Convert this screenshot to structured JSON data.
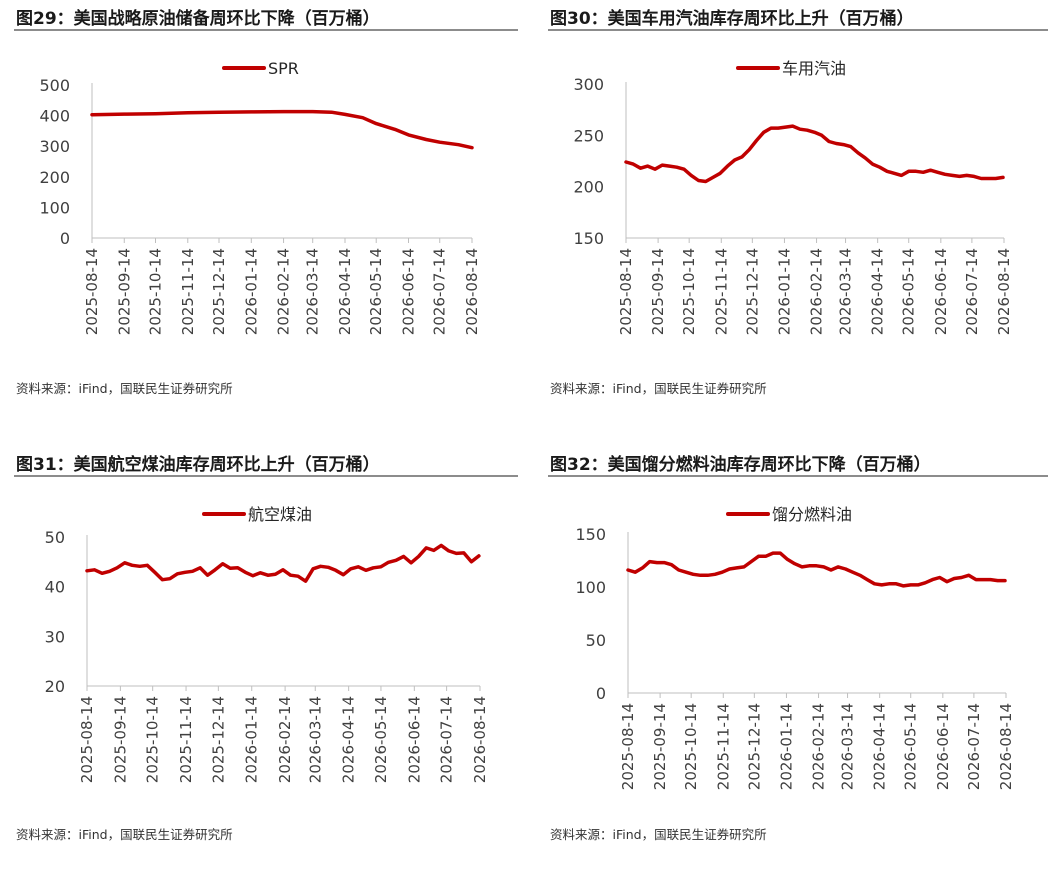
{
  "source_text": "资料来源：iFind，国联民生证券研究所",
  "panels": [
    {
      "title": "图29：美国战略原油储备周环比下降（百万桶）"
    },
    {
      "title": "图30：美国车用汽油库存周环比上升（百万桶）"
    },
    {
      "title": "图31：美国航空煤油库存周环比上升（百万桶）"
    },
    {
      "title": "图32：美国馏分燃料油库存周环比下降（百万桶）"
    }
  ],
  "chart_data": [
    {
      "type": "line",
      "title": "图29：美国战略原油储备周环比下降（百万桶）",
      "legend_position": "top",
      "line_color": "#c00000",
      "ylim": [
        0,
        500
      ],
      "yticks": [
        0,
        100,
        200,
        300,
        400,
        500
      ],
      "xticks": [
        "2025-08-14",
        "2025-09-14",
        "2025-10-14",
        "2025-11-14",
        "2025-12-14",
        "2026-01-14",
        "2026-02-14",
        "2026-03-14",
        "2026-04-14",
        "2026-05-14",
        "2026-06-14",
        "2026-07-14",
        "2026-08-14"
      ],
      "x_range": [
        "2025-08-14",
        "2026-08-14"
      ],
      "series": [
        {
          "name": "SPR",
          "x": [
            "2025-08-14",
            "2025-09-14",
            "2025-10-14",
            "2025-11-14",
            "2025-12-14",
            "2026-01-14",
            "2026-02-14",
            "2026-03-14",
            "2026-04-01",
            "2026-04-14",
            "2026-05-01",
            "2026-05-14",
            "2026-06-01",
            "2026-06-14",
            "2026-07-01",
            "2026-07-14",
            "2026-08-01",
            "2026-08-14"
          ],
          "values": [
            403,
            405,
            406,
            409,
            411,
            412,
            413,
            413,
            411,
            404,
            393,
            374,
            355,
            337,
            322,
            313,
            305,
            295
          ]
        }
      ]
    },
    {
      "type": "line",
      "title": "图30：美国车用汽油库存周环比上升（百万桶）",
      "legend_position": "top",
      "line_color": "#c00000",
      "ylim": [
        150,
        300
      ],
      "yticks": [
        150,
        200,
        250,
        300
      ],
      "xticks": [
        "2025-08-14",
        "2025-09-14",
        "2025-10-14",
        "2025-11-14",
        "2025-12-14",
        "2026-01-14",
        "2026-02-14",
        "2026-03-14",
        "2026-04-14",
        "2026-05-14",
        "2026-06-14",
        "2026-07-14",
        "2026-08-14"
      ],
      "x_range": [
        "2025-08-14",
        "2026-08-14"
      ],
      "series": [
        {
          "name": "车用汽油",
          "x": [
            "2025-08-14",
            "2025-08-21",
            "2025-08-28",
            "2025-09-04",
            "2025-09-11",
            "2025-09-18",
            "2025-09-25",
            "2025-10-02",
            "2025-10-09",
            "2025-10-16",
            "2025-10-23",
            "2025-10-30",
            "2025-11-06",
            "2025-11-13",
            "2025-11-20",
            "2025-11-27",
            "2025-12-04",
            "2025-12-11",
            "2025-12-18",
            "2025-12-25",
            "2026-01-01",
            "2026-01-08",
            "2026-01-15",
            "2026-01-22",
            "2026-01-29",
            "2026-02-05",
            "2026-02-12",
            "2026-02-19",
            "2026-02-26",
            "2026-03-05",
            "2026-03-12",
            "2026-03-19",
            "2026-03-26",
            "2026-04-02",
            "2026-04-09",
            "2026-04-16",
            "2026-04-23",
            "2026-04-30",
            "2026-05-07",
            "2026-05-14",
            "2026-05-21",
            "2026-05-28",
            "2026-06-04",
            "2026-06-11",
            "2026-06-18",
            "2026-06-25",
            "2026-07-02",
            "2026-07-09",
            "2026-07-16",
            "2026-07-23",
            "2026-07-30",
            "2026-08-06",
            "2026-08-13"
          ],
          "values": [
            224,
            222,
            218,
            220,
            217,
            221,
            220,
            219,
            217,
            211,
            206,
            205,
            209,
            213,
            220,
            226,
            229,
            236,
            245,
            253,
            257,
            257,
            258,
            259,
            256,
            255,
            253,
            250,
            244,
            242,
            241,
            239,
            233,
            228,
            222,
            219,
            215,
            213,
            211,
            215,
            215,
            214,
            216,
            214,
            212,
            211,
            210,
            211,
            210,
            208,
            208,
            208,
            209
          ]
        }
      ]
    },
    {
      "type": "line",
      "title": "图31：美国航空煤油库存周环比上升（百万桶）",
      "legend_position": "top",
      "line_color": "#c00000",
      "ylim": [
        20,
        50
      ],
      "yticks": [
        20,
        30,
        40,
        50
      ],
      "xticks": [
        "2025-08-14",
        "2025-09-14",
        "2025-10-14",
        "2025-11-14",
        "2025-12-14",
        "2026-01-14",
        "2026-02-14",
        "2026-03-14",
        "2026-04-14",
        "2026-05-14",
        "2026-06-14",
        "2026-07-14",
        "2026-08-14"
      ],
      "x_range": [
        "2025-08-14",
        "2026-08-14"
      ],
      "series": [
        {
          "name": "航空煤油",
          "x": [
            "2025-08-14",
            "2025-08-21",
            "2025-08-28",
            "2025-09-04",
            "2025-09-11",
            "2025-09-18",
            "2025-09-25",
            "2025-10-02",
            "2025-10-09",
            "2025-10-16",
            "2025-10-23",
            "2025-10-30",
            "2025-11-06",
            "2025-11-13",
            "2025-11-20",
            "2025-11-27",
            "2025-12-04",
            "2025-12-11",
            "2025-12-18",
            "2025-12-25",
            "2026-01-01",
            "2026-01-08",
            "2026-01-15",
            "2026-01-22",
            "2026-01-29",
            "2026-02-05",
            "2026-02-12",
            "2026-02-19",
            "2026-02-26",
            "2026-03-05",
            "2026-03-12",
            "2026-03-19",
            "2026-03-26",
            "2026-04-02",
            "2026-04-09",
            "2026-04-16",
            "2026-04-23",
            "2026-04-30",
            "2026-05-07",
            "2026-05-14",
            "2026-05-21",
            "2026-05-28",
            "2026-06-04",
            "2026-06-11",
            "2026-06-18",
            "2026-06-25",
            "2026-07-02",
            "2026-07-09",
            "2026-07-16",
            "2026-07-23",
            "2026-07-30",
            "2026-08-06",
            "2026-08-13"
          ],
          "values": [
            43.2,
            43.4,
            42.7,
            43.1,
            43.8,
            44.8,
            44.3,
            44.1,
            44.3,
            42.9,
            41.4,
            41.6,
            42.6,
            42.9,
            43.1,
            43.8,
            42.3,
            43.4,
            44.6,
            43.7,
            43.8,
            42.9,
            42.2,
            42.8,
            42.3,
            42.5,
            43.4,
            42.3,
            42.1,
            41.1,
            43.6,
            44.1,
            43.9,
            43.3,
            42.4,
            43.6,
            44.0,
            43.3,
            43.8,
            44.0,
            44.9,
            45.3,
            46.1,
            44.8,
            46.1,
            47.8,
            47.3,
            48.3,
            47.2,
            46.7,
            46.8,
            45.0,
            46.2
          ]
        }
      ]
    },
    {
      "type": "line",
      "title": "图32：美国馏分燃料油库存周环比下降（百万桶）",
      "legend_position": "top",
      "line_color": "#c00000",
      "ylim": [
        0,
        150
      ],
      "yticks": [
        0,
        50,
        100,
        150
      ],
      "xticks": [
        "2025-08-14",
        "2025-09-14",
        "2025-10-14",
        "2025-11-14",
        "2025-12-14",
        "2026-01-14",
        "2026-02-14",
        "2026-03-14",
        "2026-04-14",
        "2026-05-14",
        "2026-06-14",
        "2026-07-14",
        "2026-08-14"
      ],
      "x_range": [
        "2025-08-14",
        "2026-08-14"
      ],
      "series": [
        {
          "name": "馏分燃料油",
          "x": [
            "2025-08-14",
            "2025-08-21",
            "2025-08-28",
            "2025-09-04",
            "2025-09-11",
            "2025-09-18",
            "2025-09-25",
            "2025-10-02",
            "2025-10-09",
            "2025-10-16",
            "2025-10-23",
            "2025-10-30",
            "2025-11-06",
            "2025-11-13",
            "2025-11-20",
            "2025-11-27",
            "2025-12-04",
            "2025-12-11",
            "2025-12-18",
            "2025-12-25",
            "2026-01-01",
            "2026-01-08",
            "2026-01-15",
            "2026-01-22",
            "2026-01-29",
            "2026-02-05",
            "2026-02-12",
            "2026-02-19",
            "2026-02-26",
            "2026-03-05",
            "2026-03-12",
            "2026-03-19",
            "2026-03-26",
            "2026-04-02",
            "2026-04-09",
            "2026-04-16",
            "2026-04-23",
            "2026-04-30",
            "2026-05-07",
            "2026-05-14",
            "2026-05-21",
            "2026-05-28",
            "2026-06-04",
            "2026-06-11",
            "2026-06-18",
            "2026-06-25",
            "2026-07-02",
            "2026-07-09",
            "2026-07-16",
            "2026-07-23",
            "2026-07-30",
            "2026-08-06",
            "2026-08-13"
          ],
          "values": [
            116,
            114,
            118,
            124,
            123,
            123,
            121,
            116,
            114,
            112,
            111,
            111,
            112,
            114,
            117,
            118,
            119,
            124,
            129,
            129,
            132,
            132,
            126,
            122,
            119,
            120,
            120,
            119,
            116,
            119,
            117,
            114,
            111,
            107,
            103,
            102,
            103,
            103,
            101,
            102,
            102,
            104,
            107,
            109,
            105,
            108,
            109,
            111,
            107,
            107,
            107,
            106,
            106
          ]
        }
      ]
    }
  ]
}
